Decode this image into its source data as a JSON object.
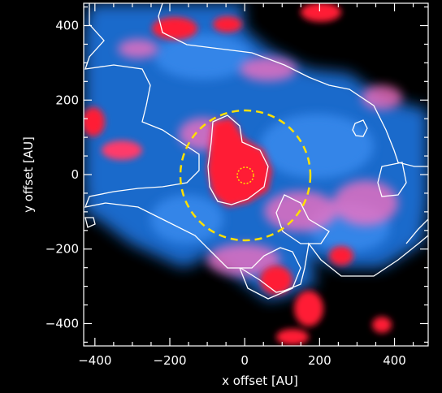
{
  "figure": {
    "xlabel": "x offset [AU]",
    "ylabel": "y offset [AU]",
    "x_tick_labels": [
      "−400",
      "−200",
      "0",
      "200",
      "400"
    ],
    "y_tick_labels": [
      "400",
      "200",
      "0",
      "−200",
      "−400"
    ],
    "x_ticks": [
      -400,
      -200,
      0,
      200,
      400
    ],
    "y_ticks": [
      400,
      200,
      0,
      -200,
      -400
    ],
    "xlim": [
      -430,
      490
    ],
    "ylim": [
      -460,
      460
    ],
    "colors": {
      "background": "#000000",
      "blue_emission": "#2a7fe0",
      "red_emission": "#ff1a2e",
      "pink_overlap": "#ff7ac8",
      "contour": "#ffffff",
      "circle": "#ffe000"
    },
    "circles": [
      {
        "name": "outer-dashed-circle",
        "radius_au": 175,
        "style": "dashed"
      },
      {
        "name": "inner-dotted-circle",
        "radius_au": 22,
        "style": "dotted"
      }
    ]
  }
}
